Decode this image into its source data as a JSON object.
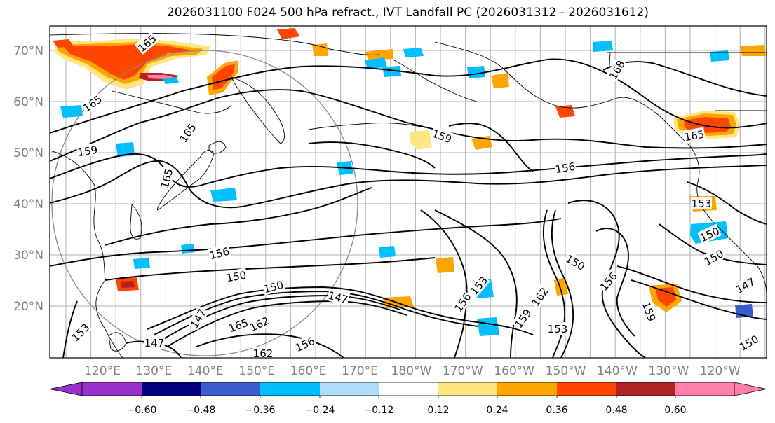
{
  "title": "2026031100 F024 500 hPa refract., IVT Landfall PC (2026031312 - 2026031612)",
  "map": {
    "lat_labels": [
      "70°N",
      "60°N",
      "50°N",
      "40°N",
      "30°N",
      "20°N"
    ],
    "lon_labels": [
      "120°E",
      "130°E",
      "140°E",
      "150°E",
      "160°E",
      "170°E",
      "180°W",
      "170°W",
      "160°W",
      "150°W",
      "140°W",
      "130°W",
      "120°W"
    ],
    "contour_labels": [
      "165",
      "165",
      "159",
      "165",
      "165",
      "159",
      "156",
      "168",
      "165",
      "156",
      "153",
      "150",
      "150",
      "147",
      "156",
      "150",
      "147",
      "150",
      "153",
      "162",
      "159",
      "150",
      "156",
      "153",
      "159",
      "147",
      "150",
      "153",
      "165",
      "162",
      "156",
      "162",
      "147"
    ]
  },
  "colorbar": {
    "tick_labels": [
      "−0.60",
      "−0.48",
      "−0.36",
      "−0.24",
      "−0.12",
      "0.12",
      "0.24",
      "0.36",
      "0.48",
      "0.60"
    ],
    "colors": [
      "#9932CC",
      "#000080",
      "#3A5CCC",
      "#00BFFF",
      "#AEDDF7",
      "#FFFFFF",
      "#FFE680",
      "#FFA500",
      "#FF4500",
      "#B22222",
      "#FF7FAA"
    ]
  }
}
